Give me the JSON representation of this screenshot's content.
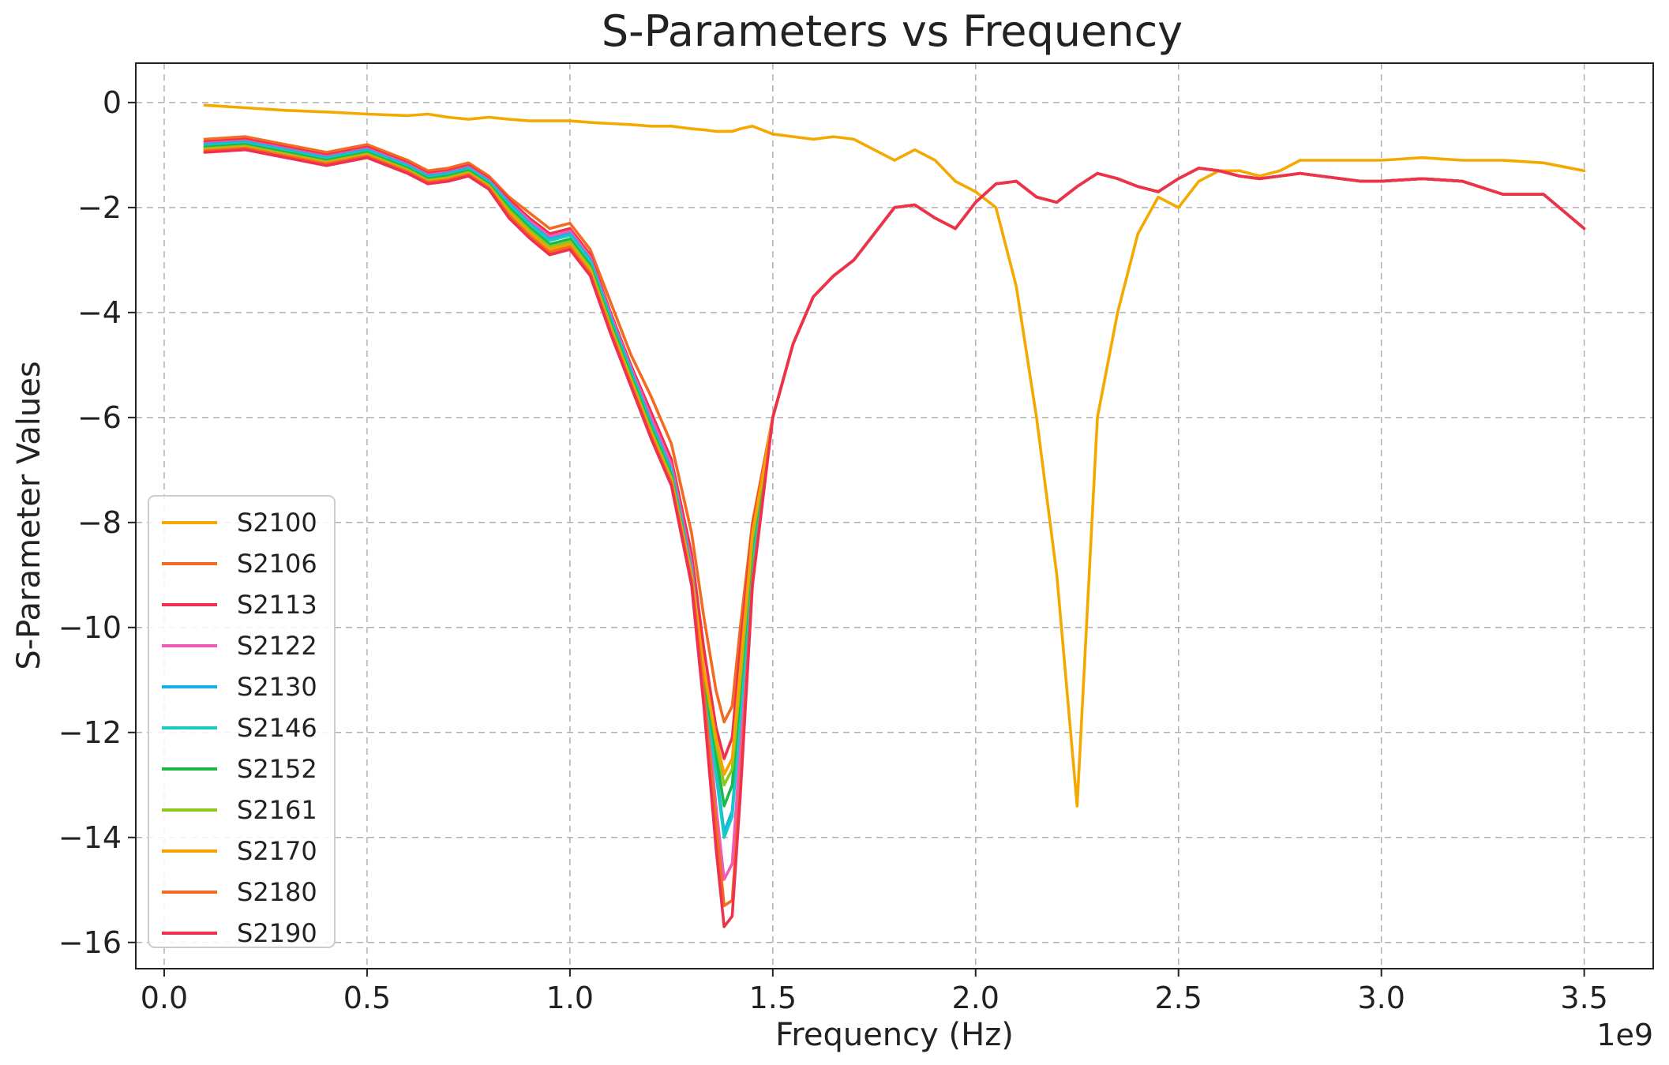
{
  "chart_data": {
    "type": "line",
    "title": "S-Parameters vs Frequency",
    "xlabel": "Frequency (Hz)",
    "ylabel": "S-Parameter Values",
    "x_offset_text": "1e9",
    "xlim": [
      -0.07,
      3.67
    ],
    "ylim": [
      -16.5,
      0.75
    ],
    "x_ticks": [
      0.0,
      0.5,
      1.0,
      1.5,
      2.0,
      2.5,
      3.0,
      3.5
    ],
    "x_tick_labels": [
      "0.0",
      "0.5",
      "1.0",
      "1.5",
      "2.0",
      "2.5",
      "3.0",
      "3.5"
    ],
    "y_ticks": [
      0,
      -2,
      -4,
      -6,
      -8,
      -10,
      -12,
      -14,
      -16
    ],
    "y_tick_labels": [
      "0",
      "−2",
      "−4",
      "−6",
      "−8",
      "−10",
      "−12",
      "−14",
      "−16"
    ],
    "grid": true,
    "legend_position": "lower-left",
    "x": [
      0.1,
      0.2,
      0.3,
      0.4,
      0.5,
      0.6,
      0.65,
      0.7,
      0.75,
      0.8,
      0.85,
      0.9,
      0.95,
      1.0,
      1.05,
      1.1,
      1.15,
      1.2,
      1.25,
      1.3,
      1.33,
      1.36,
      1.38,
      1.4,
      1.42,
      1.45,
      1.5,
      1.55,
      1.6,
      1.65,
      1.7,
      1.75,
      1.8,
      1.85,
      1.9,
      1.95,
      2.0,
      2.05,
      2.1,
      2.15,
      2.2,
      2.25,
      2.3,
      2.35,
      2.4,
      2.45,
      2.5,
      2.55,
      2.6,
      2.65,
      2.7,
      2.75,
      2.8,
      2.85,
      2.9,
      2.95,
      3.0,
      3.1,
      3.2,
      3.3,
      3.4,
      3.5
    ],
    "series": [
      {
        "name": "S2100",
        "color": "#f5a800",
        "values": [
          -0.05,
          -0.1,
          -0.15,
          -0.18,
          -0.22,
          -0.25,
          -0.22,
          -0.28,
          -0.32,
          -0.28,
          -0.32,
          -0.35,
          -0.35,
          -0.35,
          -0.38,
          -0.4,
          -0.42,
          -0.45,
          -0.45,
          -0.5,
          -0.52,
          -0.55,
          -0.55,
          -0.55,
          -0.5,
          -0.45,
          -0.6,
          -0.65,
          -0.7,
          -0.65,
          -0.7,
          -0.9,
          -1.1,
          -0.9,
          -1.1,
          -1.5,
          -1.7,
          -2.0,
          -3.5,
          -6.0,
          -9.0,
          -13.4,
          -6.0,
          -4.0,
          -2.5,
          -1.8,
          -2.0,
          -1.5,
          -1.3,
          -1.3,
          -1.4,
          -1.3,
          -1.1,
          -1.1,
          -1.1,
          -1.1,
          -1.1,
          -1.05,
          -1.1,
          -1.1,
          -1.15,
          -1.3
        ]
      },
      {
        "name": "S2106",
        "color": "#f26b21",
        "values": [
          -0.7,
          -0.65,
          -0.8,
          -0.95,
          -0.8,
          -1.1,
          -1.3,
          -1.25,
          -1.15,
          -1.4,
          -1.8,
          -2.1,
          -2.4,
          -2.3,
          -2.8,
          -3.8,
          -4.8,
          -5.6,
          -6.5,
          -8.2,
          -9.8,
          -11.2,
          -11.8,
          -11.5,
          -10.0,
          -8.0,
          -6.0,
          -4.6,
          -3.7,
          -3.3,
          -3.0,
          -2.5,
          -2.0,
          -1.95,
          -2.2,
          -2.4,
          -1.9,
          -1.55,
          -1.5,
          -1.8,
          -1.9,
          -1.6,
          -1.35,
          -1.45,
          -1.6,
          -1.7,
          -1.45,
          -1.25,
          -1.3,
          -1.4,
          -1.45,
          -1.4,
          -1.35,
          -1.4,
          -1.45,
          -1.5,
          -1.5,
          -1.45,
          -1.5,
          -1.75,
          -1.75,
          -2.4
        ]
      },
      {
        "name": "S2113",
        "color": "#f0304f",
        "values": [
          -0.75,
          -0.7,
          -0.85,
          -1.0,
          -0.85,
          -1.15,
          -1.35,
          -1.3,
          -1.2,
          -1.45,
          -1.85,
          -2.2,
          -2.5,
          -2.4,
          -2.9,
          -4.0,
          -5.0,
          -5.9,
          -6.8,
          -8.6,
          -10.4,
          -11.9,
          -12.5,
          -12.1,
          -10.4,
          -8.1,
          -6.0,
          -4.6,
          -3.7,
          -3.3,
          -3.0,
          -2.5,
          -2.0,
          -1.95,
          -2.2,
          -2.4,
          -1.9,
          -1.55,
          -1.5,
          -1.8,
          -1.9,
          -1.6,
          -1.35,
          -1.45,
          -1.6,
          -1.7,
          -1.45,
          -1.25,
          -1.3,
          -1.4,
          -1.45,
          -1.4,
          -1.35,
          -1.4,
          -1.45,
          -1.5,
          -1.5,
          -1.45,
          -1.5,
          -1.75,
          -1.75,
          -2.4
        ]
      },
      {
        "name": "S2122",
        "color": "#f25ab8",
        "values": [
          -0.78,
          -0.73,
          -0.88,
          -1.03,
          -0.88,
          -1.18,
          -1.38,
          -1.33,
          -1.23,
          -1.48,
          -1.9,
          -2.25,
          -2.55,
          -2.45,
          -2.95,
          -4.05,
          -5.05,
          -6.0,
          -6.9,
          -8.8,
          -11.0,
          -13.4,
          -14.8,
          -14.5,
          -12.3,
          -8.9,
          -6.0,
          -4.6,
          -3.7,
          -3.3,
          -3.0,
          -2.5,
          -2.0,
          -1.95,
          -2.2,
          -2.4,
          -1.9,
          -1.55,
          -1.5,
          -1.8,
          -1.9,
          -1.6,
          -1.35,
          -1.45,
          -1.6,
          -1.7,
          -1.45,
          -1.25,
          -1.3,
          -1.4,
          -1.45,
          -1.4,
          -1.35,
          -1.4,
          -1.45,
          -1.5,
          -1.5,
          -1.45,
          -1.5,
          -1.75,
          -1.75,
          -2.4
        ]
      },
      {
        "name": "S2130",
        "color": "#12b2e6",
        "values": [
          -0.8,
          -0.75,
          -0.9,
          -1.05,
          -0.9,
          -1.2,
          -1.4,
          -1.35,
          -1.25,
          -1.5,
          -1.92,
          -2.3,
          -2.6,
          -2.5,
          -3.0,
          -4.1,
          -5.1,
          -6.1,
          -7.0,
          -8.9,
          -10.9,
          -12.7,
          -13.9,
          -13.5,
          -11.6,
          -8.6,
          -6.0,
          -4.6,
          -3.7,
          -3.3,
          -3.0,
          -2.5,
          -2.0,
          -1.95,
          -2.2,
          -2.4,
          -1.9,
          -1.55,
          -1.5,
          -1.8,
          -1.9,
          -1.6,
          -1.35,
          -1.45,
          -1.6,
          -1.7,
          -1.45,
          -1.25,
          -1.3,
          -1.4,
          -1.45,
          -1.4,
          -1.35,
          -1.4,
          -1.45,
          -1.5,
          -1.5,
          -1.45,
          -1.5,
          -1.75,
          -1.75,
          -2.4
        ]
      },
      {
        "name": "S2146",
        "color": "#19c9c4",
        "values": [
          -0.82,
          -0.77,
          -0.92,
          -1.07,
          -0.92,
          -1.22,
          -1.42,
          -1.37,
          -1.27,
          -1.52,
          -1.95,
          -2.33,
          -2.63,
          -2.53,
          -3.03,
          -4.15,
          -5.15,
          -6.15,
          -7.05,
          -9.0,
          -11.0,
          -12.8,
          -14.0,
          -13.6,
          -11.7,
          -8.7,
          -6.0,
          -4.6,
          -3.7,
          -3.3,
          -3.0,
          -2.5,
          -2.0,
          -1.95,
          -2.2,
          -2.4,
          -1.9,
          -1.55,
          -1.5,
          -1.8,
          -1.9,
          -1.6,
          -1.35,
          -1.45,
          -1.6,
          -1.7,
          -1.45,
          -1.25,
          -1.3,
          -1.4,
          -1.45,
          -1.4,
          -1.35,
          -1.4,
          -1.45,
          -1.5,
          -1.5,
          -1.45,
          -1.5,
          -1.75,
          -1.75,
          -2.4
        ]
      },
      {
        "name": "S2152",
        "color": "#1cb84a",
        "values": [
          -0.85,
          -0.8,
          -0.95,
          -1.1,
          -0.95,
          -1.25,
          -1.45,
          -1.4,
          -1.3,
          -1.55,
          -2.0,
          -2.38,
          -2.7,
          -2.6,
          -3.1,
          -4.2,
          -5.2,
          -6.2,
          -7.1,
          -9.0,
          -10.9,
          -12.4,
          -13.4,
          -13.0,
          -11.2,
          -8.4,
          -6.0,
          -4.6,
          -3.7,
          -3.3,
          -3.0,
          -2.5,
          -2.0,
          -1.95,
          -2.2,
          -2.4,
          -1.9,
          -1.55,
          -1.5,
          -1.8,
          -1.9,
          -1.6,
          -1.35,
          -1.45,
          -1.6,
          -1.7,
          -1.45,
          -1.25,
          -1.3,
          -1.4,
          -1.45,
          -1.4,
          -1.35,
          -1.4,
          -1.45,
          -1.5,
          -1.5,
          -1.45,
          -1.5,
          -1.75,
          -1.75,
          -2.4
        ]
      },
      {
        "name": "S2161",
        "color": "#8cc81e",
        "values": [
          -0.88,
          -0.83,
          -0.98,
          -1.13,
          -0.98,
          -1.28,
          -1.48,
          -1.43,
          -1.33,
          -1.58,
          -2.05,
          -2.43,
          -2.75,
          -2.65,
          -3.15,
          -4.25,
          -5.25,
          -6.25,
          -7.15,
          -9.0,
          -10.8,
          -12.2,
          -13.0,
          -12.7,
          -11.0,
          -8.3,
          -6.0,
          -4.6,
          -3.7,
          -3.3,
          -3.0,
          -2.5,
          -2.0,
          -1.95,
          -2.2,
          -2.4,
          -1.9,
          -1.55,
          -1.5,
          -1.8,
          -1.9,
          -1.6,
          -1.35,
          -1.45,
          -1.6,
          -1.7,
          -1.45,
          -1.25,
          -1.3,
          -1.4,
          -1.45,
          -1.4,
          -1.35,
          -1.4,
          -1.45,
          -1.5,
          -1.5,
          -1.45,
          -1.5,
          -1.75,
          -1.75,
          -2.4
        ]
      },
      {
        "name": "S2170",
        "color": "#f5a300",
        "values": [
          -0.9,
          -0.85,
          -1.0,
          -1.15,
          -1.0,
          -1.3,
          -1.5,
          -1.45,
          -1.35,
          -1.6,
          -2.1,
          -2.48,
          -2.8,
          -2.7,
          -3.2,
          -4.3,
          -5.3,
          -6.3,
          -7.2,
          -9.0,
          -10.8,
          -12.1,
          -12.8,
          -12.5,
          -10.8,
          -8.2,
          -6.0,
          -4.6,
          -3.7,
          -3.3,
          -3.0,
          -2.5,
          -2.0,
          -1.95,
          -2.2,
          -2.4,
          -1.9,
          -1.55,
          -1.5,
          -1.8,
          -1.9,
          -1.6,
          -1.35,
          -1.45,
          -1.6,
          -1.7,
          -1.45,
          -1.25,
          -1.3,
          -1.4,
          -1.45,
          -1.4,
          -1.35,
          -1.4,
          -1.45,
          -1.5,
          -1.5,
          -1.45,
          -1.5,
          -1.75,
          -1.75,
          -2.4
        ]
      },
      {
        "name": "S2180",
        "color": "#f26b21",
        "values": [
          -0.92,
          -0.87,
          -1.02,
          -1.17,
          -1.02,
          -1.32,
          -1.52,
          -1.47,
          -1.37,
          -1.62,
          -2.15,
          -2.53,
          -2.85,
          -2.75,
          -3.25,
          -4.35,
          -5.35,
          -6.35,
          -7.25,
          -9.1,
          -11.2,
          -13.7,
          -15.3,
          -15.2,
          -13.0,
          -9.1,
          -6.0,
          -4.6,
          -3.7,
          -3.3,
          -3.0,
          -2.5,
          -2.0,
          -1.95,
          -2.2,
          -2.4,
          -1.9,
          -1.55,
          -1.5,
          -1.8,
          -1.9,
          -1.6,
          -1.35,
          -1.45,
          -1.6,
          -1.7,
          -1.45,
          -1.25,
          -1.3,
          -1.4,
          -1.45,
          -1.4,
          -1.35,
          -1.4,
          -1.45,
          -1.5,
          -1.5,
          -1.45,
          -1.5,
          -1.75,
          -1.75,
          -2.4
        ]
      },
      {
        "name": "S2190",
        "color": "#f0304f",
        "values": [
          -0.95,
          -0.9,
          -1.05,
          -1.2,
          -1.05,
          -1.35,
          -1.55,
          -1.5,
          -1.4,
          -1.65,
          -2.2,
          -2.58,
          -2.9,
          -2.8,
          -3.3,
          -4.4,
          -5.4,
          -6.4,
          -7.3,
          -9.2,
          -11.5,
          -14.2,
          -15.7,
          -15.5,
          -13.2,
          -9.2,
          -6.0,
          -4.6,
          -3.7,
          -3.3,
          -3.0,
          -2.5,
          -2.0,
          -1.95,
          -2.2,
          -2.4,
          -1.9,
          -1.55,
          -1.5,
          -1.8,
          -1.9,
          -1.6,
          -1.35,
          -1.45,
          -1.6,
          -1.7,
          -1.45,
          -1.25,
          -1.3,
          -1.4,
          -1.45,
          -1.4,
          -1.35,
          -1.4,
          -1.45,
          -1.5,
          -1.5,
          -1.45,
          -1.5,
          -1.75,
          -1.75,
          -2.4
        ]
      }
    ]
  }
}
